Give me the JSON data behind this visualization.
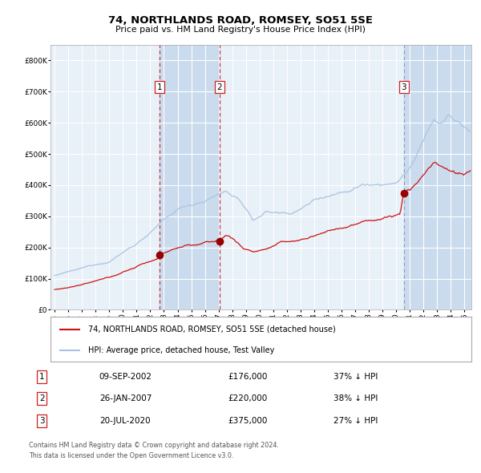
{
  "title": "74, NORTHLANDS ROAD, ROMSEY, SO51 5SE",
  "subtitle": "Price paid vs. HM Land Registry's House Price Index (HPI)",
  "hpi_color": "#a8c4e0",
  "price_color": "#cc1111",
  "plot_bg_color": "#e8f0f8",
  "span_color": "#c5d8ed",
  "grid_color": "#ffffff",
  "ylim": [
    0,
    850000
  ],
  "yticks": [
    0,
    100000,
    200000,
    300000,
    400000,
    500000,
    600000,
    700000,
    800000
  ],
  "xstart": 1995,
  "xend": 2025,
  "legend1": "74, NORTHLANDS ROAD, ROMSEY, SO51 5SE (detached house)",
  "legend2": "HPI: Average price, detached house, Test Valley",
  "sale1_date": "09-SEP-2002",
  "sale1_price": 176000,
  "sale1_year": 2002.69,
  "sale1_hpi_diff": "37% ↓ HPI",
  "sale2_date": "26-JAN-2007",
  "sale2_price": 220000,
  "sale2_year": 2007.07,
  "sale2_hpi_diff": "38% ↓ HPI",
  "sale3_date": "20-JUL-2020",
  "sale3_price": 375000,
  "sale3_year": 2020.55,
  "sale3_hpi_diff": "27% ↓ HPI",
  "footnote1": "Contains HM Land Registry data © Crown copyright and database right 2024.",
  "footnote2": "This data is licensed under the Open Government Licence v3.0."
}
